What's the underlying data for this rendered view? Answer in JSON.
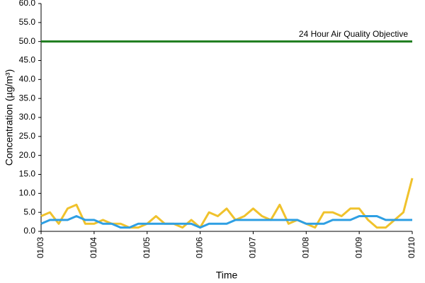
{
  "chart_data": {
    "type": "line",
    "y_label": "Concentration (µg/m³)",
    "x_label": "Time",
    "x": [
      3,
      3.167,
      3.333,
      3.5,
      3.667,
      3.833,
      4,
      4.167,
      4.333,
      4.5,
      4.667,
      4.833,
      5,
      5.167,
      5.333,
      5.5,
      5.667,
      5.833,
      6,
      6.167,
      6.333,
      6.5,
      6.667,
      6.833,
      7,
      7.167,
      7.333,
      7.5,
      7.667,
      7.833,
      8,
      8.167,
      8.333,
      8.5,
      8.667,
      8.833,
      9,
      9.167,
      9.333,
      9.5,
      9.667,
      9.833,
      10
    ],
    "series": [
      {
        "color": "#f0c22c",
        "values": [
          4,
          5,
          2,
          6,
          7,
          2,
          2,
          3,
          2,
          2,
          1,
          1,
          2,
          4,
          2,
          2,
          1,
          3,
          1,
          5,
          4,
          6,
          3,
          4,
          6,
          4,
          3,
          7,
          2,
          3,
          2,
          1,
          5,
          5,
          4,
          6,
          6,
          3,
          1,
          1,
          3,
          5,
          14
        ]
      },
      {
        "color": "#2e9fe3",
        "values": [
          2,
          3,
          3,
          3,
          4,
          3,
          3,
          2,
          2,
          1,
          1,
          2,
          2,
          2,
          2,
          2,
          2,
          2,
          1,
          2,
          2,
          2,
          3,
          3,
          3,
          3,
          3,
          3,
          3,
          3,
          2,
          2,
          2,
          3,
          3,
          3,
          4,
          4,
          4,
          3,
          3,
          3,
          3
        ]
      }
    ],
    "objective": {
      "label": "24 Hour Air Quality Objective",
      "value": 50,
      "color": "#1e7d1e"
    },
    "xlim": [
      3,
      10
    ],
    "xticks": [
      {
        "value": 3,
        "label": "01/03"
      },
      {
        "value": 4,
        "label": "01/04"
      },
      {
        "value": 5,
        "label": "01/05"
      },
      {
        "value": 6,
        "label": "01/06"
      },
      {
        "value": 7,
        "label": "01/07"
      },
      {
        "value": 8,
        "label": "01/08"
      },
      {
        "value": 9,
        "label": "01/09"
      },
      {
        "value": 10,
        "label": "01/10"
      }
    ],
    "ylim": [
      0,
      60
    ],
    "yticks": [
      {
        "value": 0,
        "label": "0.0"
      },
      {
        "value": 5,
        "label": "5.0"
      },
      {
        "value": 10,
        "label": "10.0"
      },
      {
        "value": 15,
        "label": "15.0"
      },
      {
        "value": 20,
        "label": "20.0"
      },
      {
        "value": 25,
        "label": "25.0"
      },
      {
        "value": 30,
        "label": "30.0"
      },
      {
        "value": 35,
        "label": "35.0"
      },
      {
        "value": 40,
        "label": "40.0"
      },
      {
        "value": 45,
        "label": "45.0"
      },
      {
        "value": 50,
        "label": "50.0"
      },
      {
        "value": 55,
        "label": "55.0"
      },
      {
        "value": 60,
        "label": "60.0"
      }
    ],
    "grid": false
  }
}
